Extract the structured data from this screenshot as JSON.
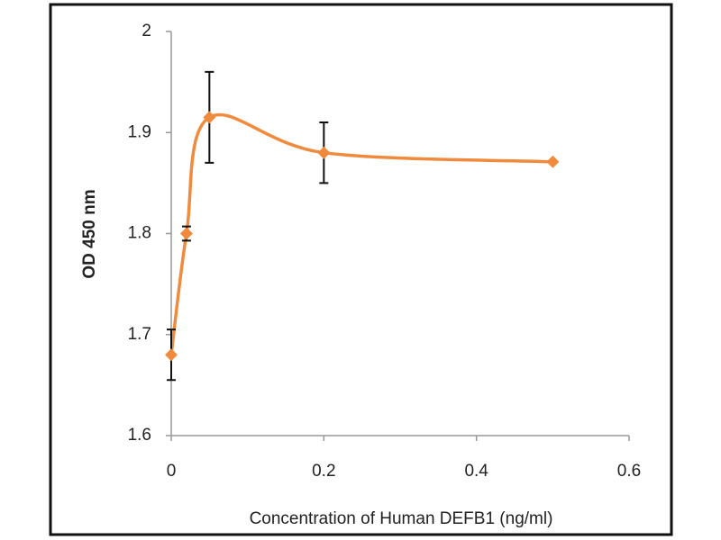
{
  "chart_data": {
    "type": "scatter-smooth",
    "x_label": "Concentration of Human DEFB1 (ng/ml)",
    "y_label": "OD 450 nm",
    "series": [
      {
        "color": "#f08a3c",
        "x": [
          0,
          0.02,
          0.05,
          0.2,
          0.5
        ],
        "values": [
          1.68,
          1.8,
          1.915,
          1.88,
          1.871
        ],
        "errors": [
          0.025,
          0.007,
          0.045,
          0.03,
          null
        ]
      }
    ],
    "xlim": [
      0,
      0.6
    ],
    "xticks": [
      0,
      0.2,
      0.4,
      0.6
    ],
    "ylim": [
      1.6,
      2
    ],
    "yticks": [
      1.6,
      1.7,
      1.8,
      1.9,
      2
    ],
    "grid": false
  }
}
